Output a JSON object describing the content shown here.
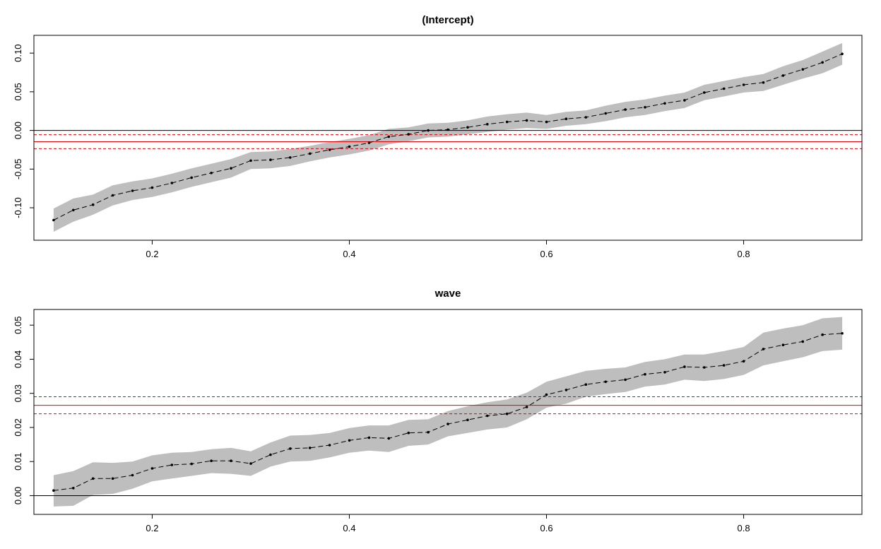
{
  "chart_data": [
    {
      "type": "line",
      "title": "(Intercept)",
      "xlabel": "",
      "ylabel": "",
      "xlim": [
        0.08,
        0.92
      ],
      "ylim": [
        -0.142,
        0.123
      ],
      "x_ticks": [
        0.2,
        0.4,
        0.6,
        0.8
      ],
      "x_tick_labels": [
        "0.2",
        "0.4",
        "0.6",
        "0.8"
      ],
      "y_ticks": [
        -0.1,
        -0.05,
        0.0,
        0.05,
        0.1
      ],
      "y_tick_labels": [
        "-0.10",
        "-0.05",
        "0.00",
        "0.05",
        "0.10"
      ],
      "grid": false,
      "x": [
        0.1,
        0.12,
        0.14,
        0.16,
        0.18,
        0.2,
        0.22,
        0.24,
        0.26,
        0.28,
        0.3,
        0.32,
        0.34,
        0.36,
        0.38,
        0.4,
        0.42,
        0.44,
        0.46,
        0.48,
        0.5,
        0.52,
        0.54,
        0.56,
        0.58,
        0.6,
        0.62,
        0.64,
        0.66,
        0.68,
        0.7,
        0.72,
        0.74,
        0.76,
        0.78,
        0.8,
        0.82,
        0.84,
        0.86,
        0.88,
        0.9
      ],
      "series": [
        {
          "values": [
            -0.116,
            -0.103,
            -0.096,
            -0.084,
            -0.078,
            -0.074,
            -0.068,
            -0.061,
            -0.055,
            -0.049,
            -0.039,
            -0.038,
            -0.035,
            -0.03,
            -0.025,
            -0.021,
            -0.016,
            -0.008,
            -0.005,
            0.0,
            0.001,
            0.004,
            0.008,
            0.011,
            0.013,
            0.011,
            0.015,
            0.017,
            0.022,
            0.027,
            0.03,
            0.035,
            0.039,
            0.049,
            0.054,
            0.059,
            0.062,
            0.071,
            0.079,
            0.088,
            0.099
          ],
          "lower": [
            -0.131,
            -0.118,
            -0.109,
            -0.097,
            -0.09,
            -0.086,
            -0.08,
            -0.073,
            -0.067,
            -0.061,
            -0.05,
            -0.049,
            -0.046,
            -0.04,
            -0.035,
            -0.031,
            -0.026,
            -0.018,
            -0.014,
            -0.009,
            -0.008,
            -0.005,
            -0.002,
            0.001,
            0.003,
            0.002,
            0.006,
            0.008,
            0.012,
            0.017,
            0.02,
            0.025,
            0.029,
            0.039,
            0.044,
            0.049,
            0.051,
            0.059,
            0.067,
            0.074,
            0.085
          ],
          "upper": [
            -0.101,
            -0.088,
            -0.083,
            -0.071,
            -0.066,
            -0.062,
            -0.056,
            -0.049,
            -0.043,
            -0.037,
            -0.028,
            -0.027,
            -0.024,
            -0.02,
            -0.015,
            -0.011,
            -0.006,
            0.002,
            0.004,
            0.009,
            0.01,
            0.013,
            0.018,
            0.021,
            0.023,
            0.02,
            0.024,
            0.026,
            0.032,
            0.037,
            0.04,
            0.045,
            0.049,
            0.059,
            0.064,
            0.069,
            0.073,
            0.083,
            0.091,
            0.102,
            0.113
          ]
        }
      ],
      "reference_lines": {
        "zero": 0.0,
        "estimate": -0.0145,
        "ci_lower": -0.0235,
        "ci_upper": -0.0055
      },
      "colors": {
        "band": "#bebebe",
        "line": "#000000",
        "reference": "#e8000b",
        "zero": "#000000"
      }
    },
    {
      "type": "line",
      "title": "wave",
      "xlabel": "",
      "ylabel": "",
      "xlim": [
        0.08,
        0.92
      ],
      "ylim": [
        -0.0055,
        0.0546
      ],
      "x_ticks": [
        0.2,
        0.4,
        0.6,
        0.8
      ],
      "x_tick_labels": [
        "0.2",
        "0.4",
        "0.6",
        "0.8"
      ],
      "y_ticks": [
        0.0,
        0.01,
        0.02,
        0.03,
        0.04,
        0.05
      ],
      "y_tick_labels": [
        "0.00",
        "0.01",
        "0.02",
        "0.03",
        "0.04",
        "0.05"
      ],
      "grid": false,
      "x": [
        0.1,
        0.12,
        0.14,
        0.16,
        0.18,
        0.2,
        0.22,
        0.24,
        0.26,
        0.28,
        0.3,
        0.32,
        0.34,
        0.36,
        0.38,
        0.4,
        0.42,
        0.44,
        0.46,
        0.48,
        0.5,
        0.52,
        0.54,
        0.56,
        0.58,
        0.6,
        0.62,
        0.64,
        0.66,
        0.68,
        0.7,
        0.72,
        0.74,
        0.76,
        0.78,
        0.8,
        0.82,
        0.84,
        0.86,
        0.88,
        0.9
      ],
      "series": [
        {
          "values": [
            0.0015,
            0.0022,
            0.005,
            0.005,
            0.006,
            0.008,
            0.009,
            0.0093,
            0.0102,
            0.0102,
            0.0094,
            0.012,
            0.0138,
            0.014,
            0.0148,
            0.0162,
            0.017,
            0.0168,
            0.0184,
            0.0186,
            0.021,
            0.0222,
            0.0234,
            0.024,
            0.026,
            0.0296,
            0.031,
            0.0326,
            0.0334,
            0.034,
            0.0356,
            0.0362,
            0.0378,
            0.0376,
            0.0382,
            0.0394,
            0.043,
            0.0442,
            0.0452,
            0.0472,
            0.0476
          ],
          "lower": [
            -0.0032,
            -0.003,
            0.0002,
            0.0005,
            0.002,
            0.0042,
            0.005,
            0.0058,
            0.0066,
            0.0064,
            0.0058,
            0.0085,
            0.01,
            0.0102,
            0.0112,
            0.0126,
            0.0132,
            0.0128,
            0.0146,
            0.015,
            0.0174,
            0.0184,
            0.0194,
            0.02,
            0.0224,
            0.0258,
            0.027,
            0.029,
            0.0298,
            0.0304,
            0.032,
            0.0326,
            0.034,
            0.0336,
            0.0342,
            0.0354,
            0.0382,
            0.0394,
            0.0406,
            0.0424,
            0.0428
          ],
          "upper": [
            0.006,
            0.0072,
            0.0098,
            0.0096,
            0.01,
            0.0118,
            0.0126,
            0.0128,
            0.0136,
            0.014,
            0.013,
            0.0156,
            0.0176,
            0.0178,
            0.0184,
            0.0198,
            0.0206,
            0.0206,
            0.0222,
            0.0224,
            0.0248,
            0.0262,
            0.0274,
            0.0282,
            0.0302,
            0.0334,
            0.035,
            0.0366,
            0.0372,
            0.0376,
            0.0392,
            0.04,
            0.0414,
            0.0414,
            0.0424,
            0.0436,
            0.0478,
            0.049,
            0.05,
            0.052,
            0.0524
          ]
        }
      ],
      "reference_lines": {
        "zero": 0.0,
        "estimate": 0.0265,
        "ci_lower": 0.024,
        "ci_upper": 0.029
      },
      "colors": {
        "band": "#bebebe",
        "line": "#000000",
        "reference": "#e8000b",
        "zero": "#000000"
      }
    }
  ]
}
